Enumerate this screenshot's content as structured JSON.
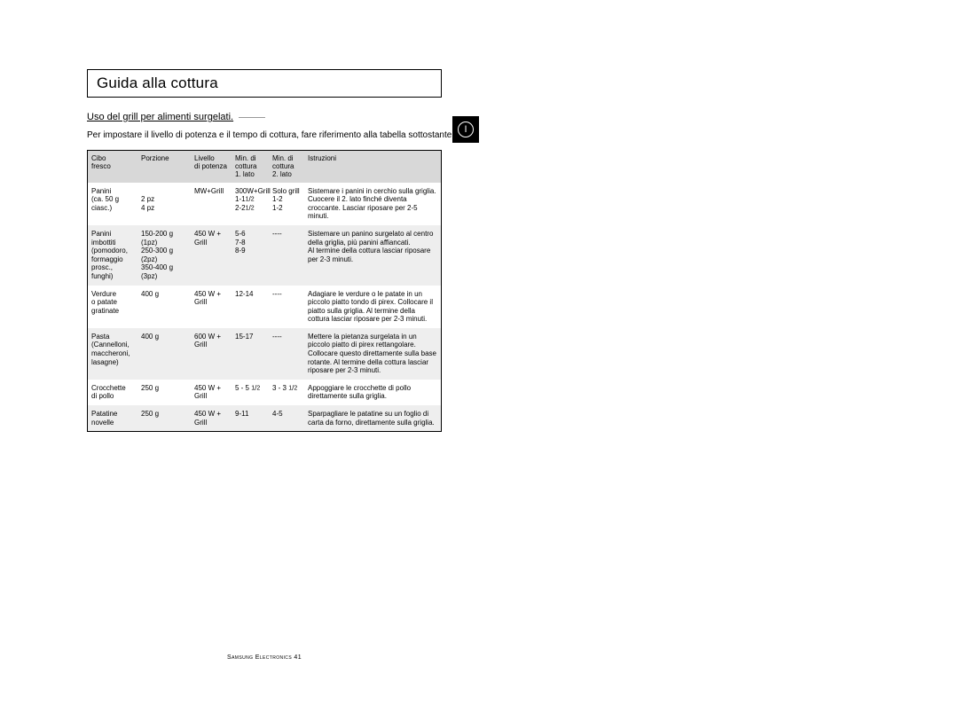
{
  "page": {
    "title": "Guida alla cottura",
    "subtitle": "Uso del grill per alimenti surgelati.",
    "intro": "Per impostare il livello di potenza e il tempo di cottura, fare riferimento alla tabella sottostante.",
    "lang_badge": "I",
    "footer": "Samsung Electronics   41"
  },
  "table": {
    "header": {
      "food_l1": "Cibo",
      "food_l2": "fresco",
      "portion": "Porzione",
      "power_l1": "Livello",
      "power_l2": "di potenza",
      "t1_l1": "Min. di",
      "t1_l2": "cottura",
      "t1_l3": "1. lato",
      "t2_l1": "Min. di",
      "t2_l2": "cottura",
      "t2_l3": "2. lato",
      "instr": "Istruzioni"
    },
    "rows": [
      {
        "food": "Panini\n(ca. 50 g ciasc.)",
        "portion": "\n2 pz\n4 pz",
        "power": "MW+Grill",
        "t1": "300W+Grill\n1-1½\n2-2½",
        "t2": "Solo grill\n1-2\n1-2",
        "instr": "Sistemare i panini in cerchio sulla griglia. Cuocere il 2. lato finché diventa croccante. Lasciar riposare per 2-5 minuti.",
        "alt": false
      },
      {
        "food": "Panini\nimbottiti\n(pomodoro,\nformaggio\nprosc., funghi)",
        "portion": "150-200 g (1pz)\n250-300 g (2pz)\n350-400 g (3pz)",
        "power": "450 W +\nGrill",
        "t1": "5-6\n7-8\n8-9",
        "t2": "----",
        "instr": "Sistemare un panino surgelato al centro della griglia, più panini affiancati.\nAl termine della cottura lasciar riposare per 2-3 minuti.",
        "alt": true
      },
      {
        "food": "Verdure\no patate\ngratinate",
        "portion": "400 g",
        "power": "450 W +\nGrill",
        "t1": "12-14",
        "t2": "----",
        "instr": "Adagiare le verdure o le patate in un piccolo piatto tondo di pirex. Collocare il piatto sulla griglia. Al termine della cottura lasciar riposare per 2-3 minuti.",
        "alt": false
      },
      {
        "food": "Pasta\n(Cannelloni,\nmaccheroni,\nlasagne)",
        "portion": "400 g",
        "power": "600 W +\nGrill",
        "t1": "15-17",
        "t2": "----",
        "instr": "Mettere la pietanza surgelata in un piccolo piatto di pirex rettangolare. Collocare questo direttamente sulla base rotante. Al termine della cottura lasciar riposare per 2-3 minuti.",
        "alt": true
      },
      {
        "food": "Crocchette\ndi pollo",
        "portion": "250 g",
        "power": "450 W +\nGrill",
        "t1": "5 - 5 ½",
        "t2": "3 - 3 ½",
        "instr": "Appoggiare le crocchette di pollo direttamente sulla griglia.",
        "alt": false
      },
      {
        "food": "Patatine\nnovelle",
        "portion": "250 g",
        "power": "450 W +\nGrill",
        "t1": "9-11",
        "t2": "4-5",
        "instr": "Sparpagliare le patatine su un foglio di carta da forno, direttamente sulla griglia.",
        "alt": true
      }
    ]
  }
}
